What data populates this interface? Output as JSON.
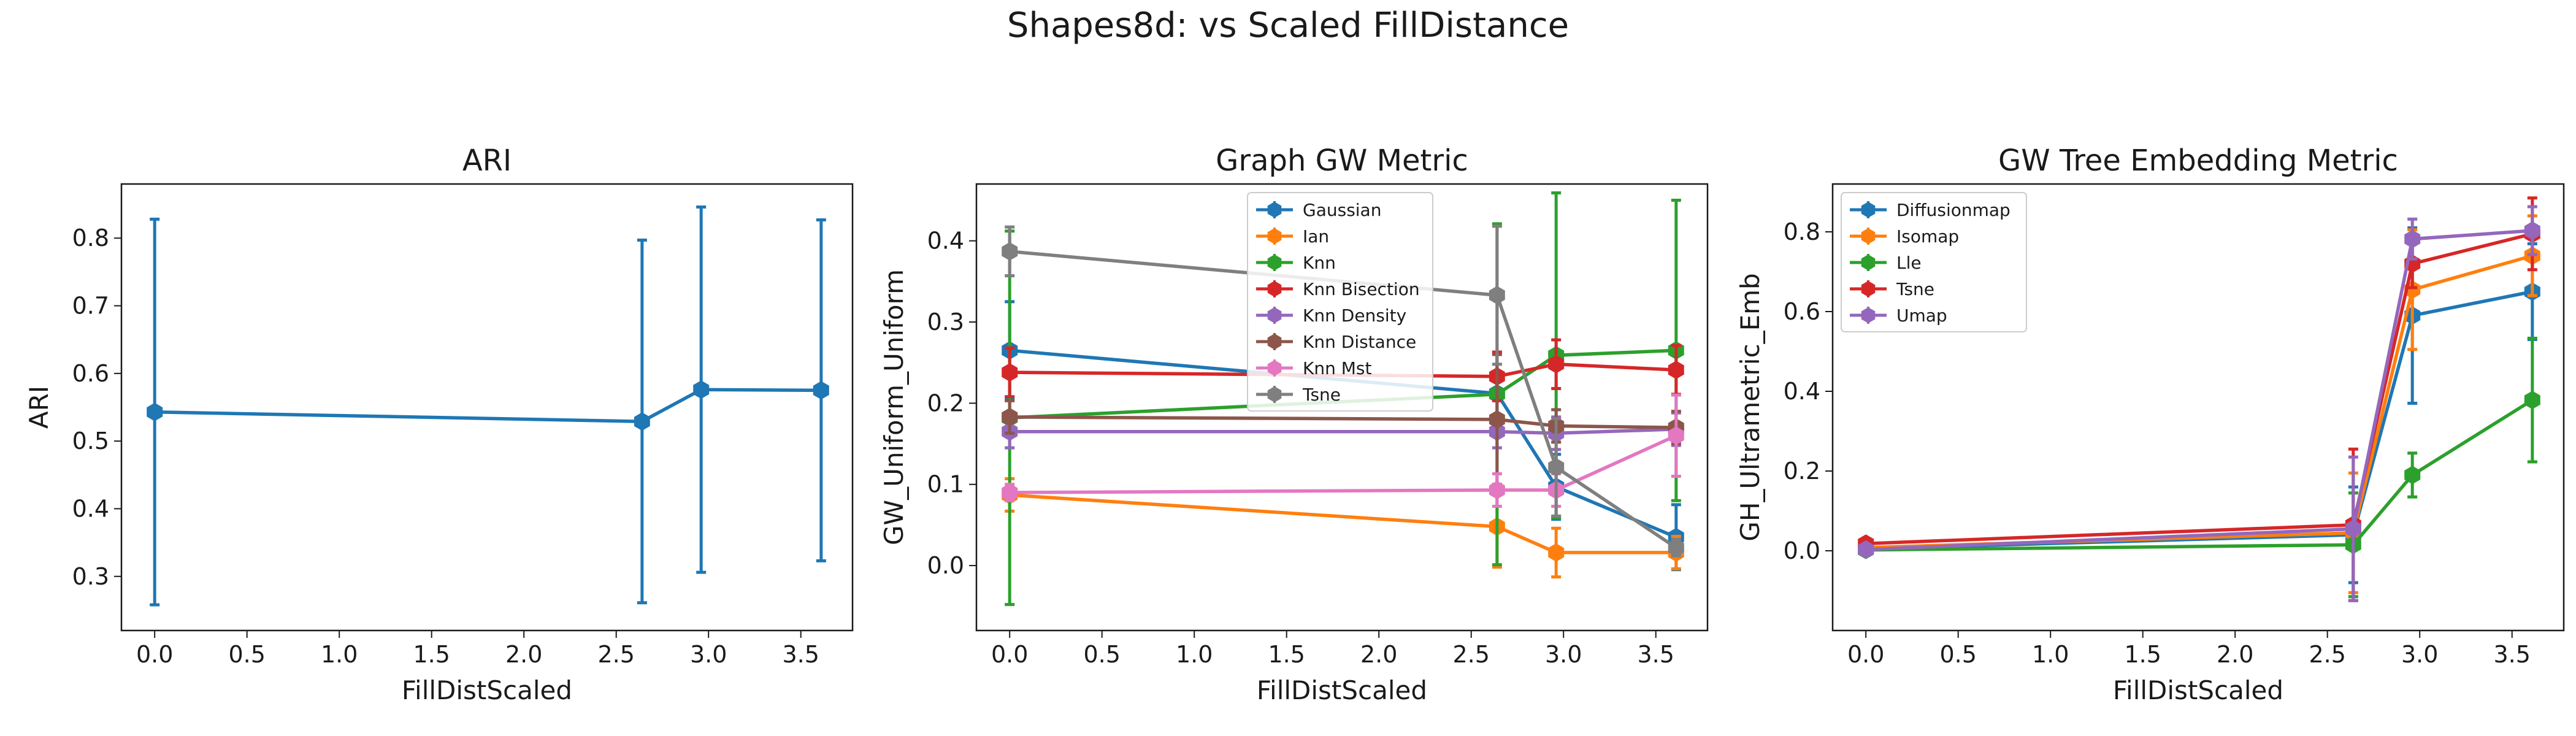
{
  "figure": {
    "suptitle": "Shapes8d: vs Scaled FillDistance"
  },
  "chart_data": [
    {
      "type": "line",
      "title": "ARI",
      "xlabel": "FillDistScaled",
      "ylabel": "ARI",
      "xlim": [
        -0.18,
        3.78
      ],
      "ylim": [
        0.22,
        0.88
      ],
      "xticks": [
        0.0,
        0.5,
        1.0,
        1.5,
        2.0,
        2.5,
        3.0,
        3.5
      ],
      "yticks": [
        0.3,
        0.4,
        0.5,
        0.6,
        0.7,
        0.8
      ],
      "xtick_labels": [
        "0.0",
        "0.5",
        "1.0",
        "1.5",
        "2.0",
        "2.5",
        "3.0",
        "3.5"
      ],
      "ytick_labels": [
        "0.3",
        "0.4",
        "0.5",
        "0.6",
        "0.7",
        "0.8"
      ],
      "legend": null,
      "series": [
        {
          "color": "#1f77b4",
          "x": [
            0.0,
            2.64,
            2.96,
            3.61
          ],
          "y": [
            0.543,
            0.529,
            0.576,
            0.575
          ],
          "err": [
            0.285,
            0.268,
            0.27,
            0.252
          ]
        }
      ]
    },
    {
      "type": "line",
      "title": "Graph GW Metric",
      "xlabel": "FillDistScaled",
      "ylabel": "GW_Uniform_Uniform",
      "xlim": [
        -0.18,
        3.78
      ],
      "ylim": [
        -0.08,
        0.47
      ],
      "xticks": [
        0.0,
        0.5,
        1.0,
        1.5,
        2.0,
        2.5,
        3.0,
        3.5
      ],
      "yticks": [
        0.0,
        0.1,
        0.2,
        0.3,
        0.4
      ],
      "xtick_labels": [
        "0.0",
        "0.5",
        "1.0",
        "1.5",
        "2.0",
        "2.5",
        "3.0",
        "3.5"
      ],
      "ytick_labels": [
        "0.0",
        "0.1",
        "0.2",
        "0.3",
        "0.4"
      ],
      "legend": "upper-center",
      "series": [
        {
          "name": "Gaussian",
          "color": "#1f77b4",
          "x": [
            0.0,
            2.64,
            2.96,
            3.61
          ],
          "y": [
            0.265,
            0.212,
            0.097,
            0.035
          ],
          "err": [
            0.06,
            0.05,
            0.04,
            0.04
          ]
        },
        {
          "name": "Ian",
          "color": "#ff7f0e",
          "x": [
            0.0,
            2.64,
            2.96,
            3.61
          ],
          "y": [
            0.087,
            0.048,
            0.016,
            0.016
          ],
          "err": [
            0.02,
            0.05,
            0.03,
            0.02
          ]
        },
        {
          "name": "Knn",
          "color": "#2ca02c",
          "x": [
            0.0,
            2.64,
            2.96,
            3.61
          ],
          "y": [
            0.182,
            0.211,
            0.259,
            0.265
          ],
          "err": [
            0.23,
            0.21,
            0.2,
            0.185
          ]
        },
        {
          "name": "Knn Bisection",
          "color": "#d62728",
          "x": [
            0.0,
            2.64,
            2.96,
            3.61
          ],
          "y": [
            0.238,
            0.233,
            0.248,
            0.241
          ],
          "err": [
            0.03,
            0.03,
            0.03,
            0.03
          ]
        },
        {
          "name": "Knn Density",
          "color": "#9467bd",
          "x": [
            0.0,
            2.64,
            2.96,
            3.61
          ],
          "y": [
            0.165,
            0.165,
            0.163,
            0.168
          ],
          "err": [
            0.02,
            0.02,
            0.02,
            0.02
          ]
        },
        {
          "name": "Knn Distance",
          "color": "#8c564b",
          "x": [
            0.0,
            2.64,
            2.96,
            3.61
          ],
          "y": [
            0.183,
            0.18,
            0.172,
            0.17
          ],
          "err": [
            0.02,
            0.08,
            0.02,
            0.02
          ]
        },
        {
          "name": "Knn Mst",
          "color": "#e377c2",
          "x": [
            0.0,
            2.64,
            2.96,
            3.61
          ],
          "y": [
            0.09,
            0.093,
            0.093,
            0.16
          ],
          "err": [
            0.01,
            0.02,
            0.02,
            0.05
          ]
        },
        {
          "name": "Tsne",
          "color": "#7f7f7f",
          "x": [
            0.0,
            2.64,
            2.96,
            3.61
          ],
          "y": [
            0.387,
            0.333,
            0.121,
            0.022
          ],
          "err": [
            0.03,
            0.085,
            0.06,
            0.01
          ]
        }
      ]
    },
    {
      "type": "line",
      "title": "GW Tree Embedding Metric",
      "xlabel": "FillDistScaled",
      "ylabel": "GH_Ultrametric_Emb",
      "xlim": [
        -0.18,
        3.78
      ],
      "ylim": [
        -0.2,
        0.92
      ],
      "xticks": [
        0.0,
        0.5,
        1.0,
        1.5,
        2.0,
        2.5,
        3.0,
        3.5
      ],
      "yticks": [
        0.0,
        0.2,
        0.4,
        0.6,
        0.8
      ],
      "xtick_labels": [
        "0.0",
        "0.5",
        "1.0",
        "1.5",
        "2.0",
        "2.5",
        "3.0",
        "3.5"
      ],
      "ytick_labels": [
        "0.0",
        "0.2",
        "0.4",
        "0.6",
        "0.8"
      ],
      "legend": "upper-left",
      "series": [
        {
          "name": "Diffusionmap",
          "color": "#1f77b4",
          "x": [
            0.0,
            2.64,
            2.96,
            3.61
          ],
          "y": [
            0.005,
            0.04,
            0.59,
            0.65
          ],
          "err": [
            0.01,
            0.12,
            0.22,
            0.12
          ]
        },
        {
          "name": "Isomap",
          "color": "#ff7f0e",
          "x": [
            0.0,
            2.64,
            2.96,
            3.61
          ],
          "y": [
            0.008,
            0.045,
            0.655,
            0.74
          ],
          "err": [
            0.01,
            0.15,
            0.15,
            0.1
          ]
        },
        {
          "name": "Lle",
          "color": "#2ca02c",
          "x": [
            0.0,
            2.64,
            2.96,
            3.61
          ],
          "y": [
            0.002,
            0.015,
            0.19,
            0.378
          ],
          "err": [
            0.005,
            0.13,
            0.055,
            0.155
          ]
        },
        {
          "name": "Tsne",
          "color": "#d62728",
          "x": [
            0.0,
            2.64,
            2.96,
            3.61
          ],
          "y": [
            0.018,
            0.065,
            0.72,
            0.795
          ],
          "err": [
            0.01,
            0.19,
            0.06,
            0.09
          ]
        },
        {
          "name": "Umap",
          "color": "#9467bd",
          "x": [
            0.0,
            2.64,
            2.96,
            3.61
          ],
          "y": [
            0.003,
            0.055,
            0.782,
            0.803
          ],
          "err": [
            0.005,
            0.18,
            0.05,
            0.06
          ]
        }
      ]
    }
  ]
}
